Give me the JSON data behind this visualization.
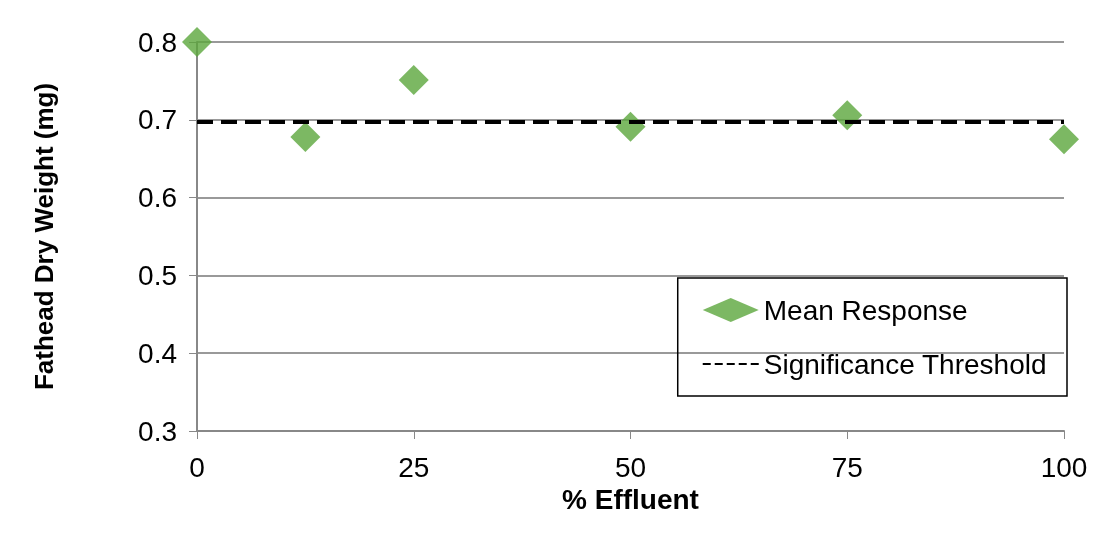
{
  "chart_data": {
    "type": "scatter",
    "xlabel": "% Effluent",
    "ylabel": "Fathead Dry Weight (mg)",
    "x": [
      0,
      12.5,
      25,
      50,
      75,
      100
    ],
    "series": [
      {
        "name": "Mean Response",
        "color": "#5ba63c",
        "values": [
          0.8,
          0.678,
          0.751,
          0.691,
          0.706,
          0.675
        ]
      }
    ],
    "ref_lines": [
      {
        "axis": "y",
        "value": 0.697,
        "label": "Significance Threshold",
        "color": "#000000",
        "line_style": "dashed"
      }
    ],
    "xlim": [
      0,
      100
    ],
    "xticks": [
      0,
      25,
      50,
      75,
      100
    ],
    "ylim": [
      0.3,
      0.8
    ],
    "yticks": [
      0.3,
      0.4,
      0.5,
      0.6,
      0.7,
      0.8
    ],
    "grid": "y",
    "legend": "bottom right",
    "marker": "diamond"
  }
}
